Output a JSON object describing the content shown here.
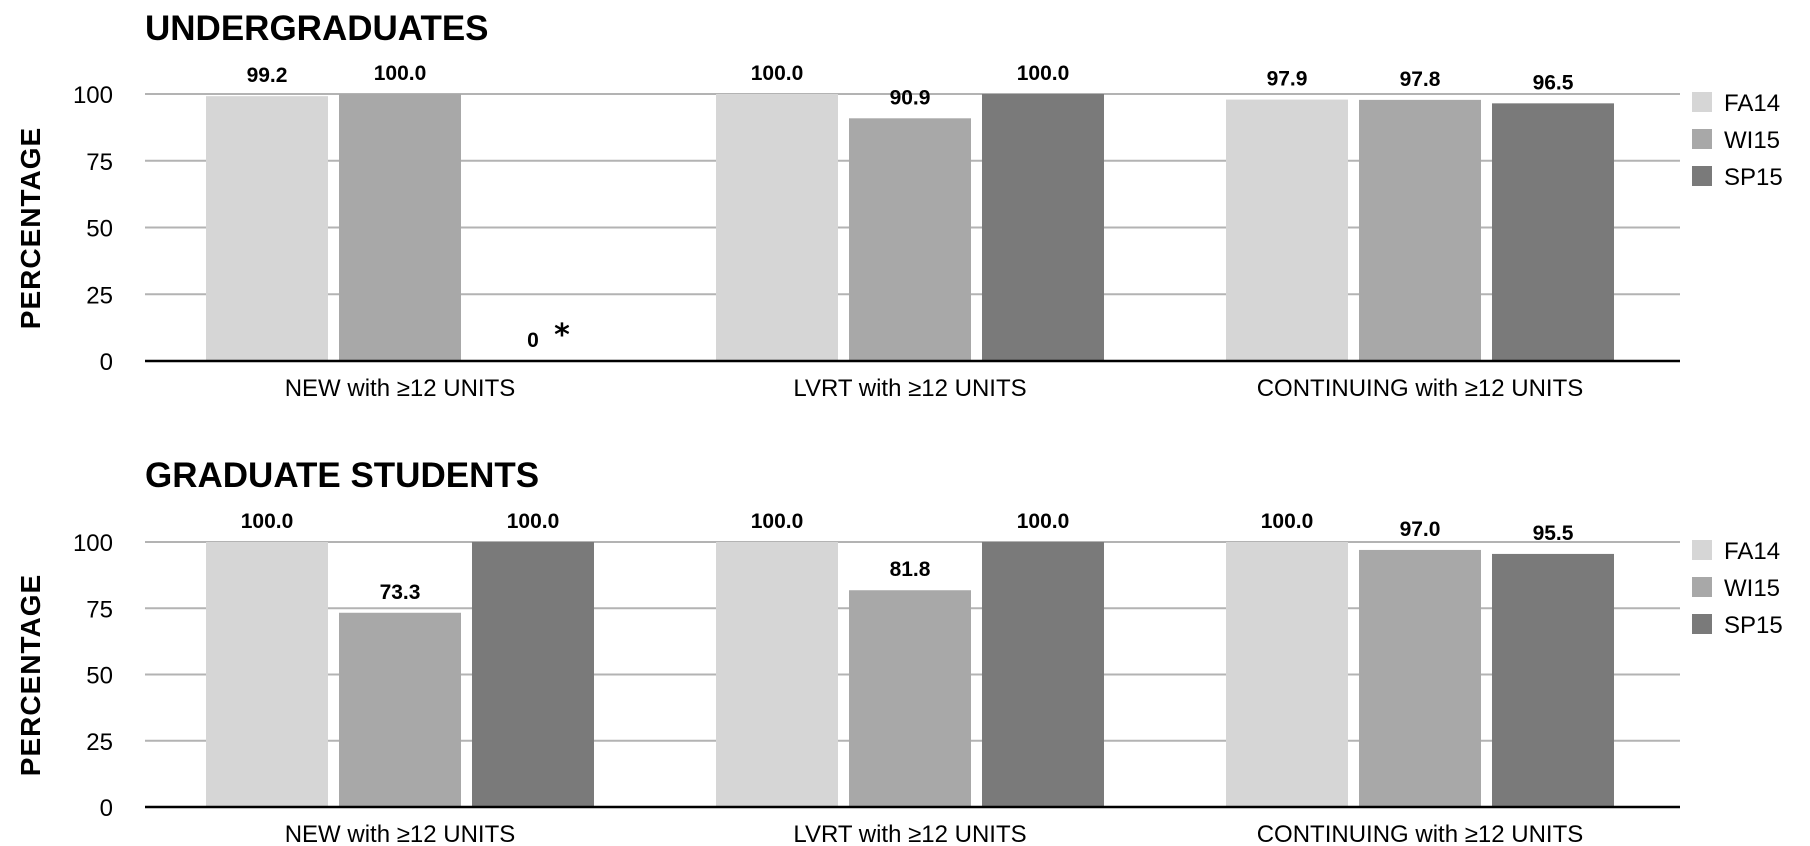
{
  "chart_data": [
    {
      "type": "bar",
      "title": "UNDERGRADUATES",
      "ylabel": "PERCENTAGE",
      "xlabel": "",
      "ylim": [
        0,
        100
      ],
      "yticks": [
        0,
        25,
        50,
        75,
        100
      ],
      "grid": true,
      "legend_placement": "right",
      "categories": [
        "NEW with ≥12 UNITS",
        "LVRT with ≥12 UNITS",
        "CONTINUING with ≥12 UNITS"
      ],
      "series": [
        {
          "name": "FA14",
          "color": "#d6d6d6",
          "values": [
            99.2,
            100.0,
            97.9
          ],
          "labels": [
            "99.2",
            "100.0",
            "97.9"
          ]
        },
        {
          "name": "WI15",
          "color": "#a8a8a8",
          "values": [
            100.0,
            90.9,
            97.8
          ],
          "labels": [
            "100.0",
            "90.9",
            "97.8"
          ]
        },
        {
          "name": "SP15",
          "color": "#7a7a7a",
          "values": [
            0,
            100.0,
            96.5
          ],
          "labels": [
            "0",
            "100.0",
            "96.5"
          ]
        }
      ],
      "annotations": [
        {
          "category": "NEW with ≥12 UNITS",
          "series": "SP15",
          "text": "*"
        }
      ]
    },
    {
      "type": "bar",
      "title": "GRADUATE STUDENTS",
      "ylabel": "PERCENTAGE",
      "xlabel": "",
      "ylim": [
        0,
        100
      ],
      "yticks": [
        0,
        25,
        50,
        75,
        100
      ],
      "grid": true,
      "legend_placement": "right",
      "categories": [
        "NEW with ≥12 UNITS",
        "LVRT with ≥12 UNITS",
        "CONTINUING with ≥12 UNITS"
      ],
      "series": [
        {
          "name": "FA14",
          "color": "#d6d6d6",
          "values": [
            100.0,
            100.0,
            100.0
          ],
          "labels": [
            "100.0",
            "100.0",
            "100.0"
          ]
        },
        {
          "name": "WI15",
          "color": "#a8a8a8",
          "values": [
            73.3,
            81.8,
            97.0
          ],
          "labels": [
            "73.3",
            "81.8",
            "97.0"
          ]
        },
        {
          "name": "SP15",
          "color": "#7a7a7a",
          "values": [
            100.0,
            100.0,
            95.5
          ],
          "labels": [
            "100.0",
            "100.0",
            "95.5"
          ]
        }
      ],
      "annotations": []
    }
  ]
}
